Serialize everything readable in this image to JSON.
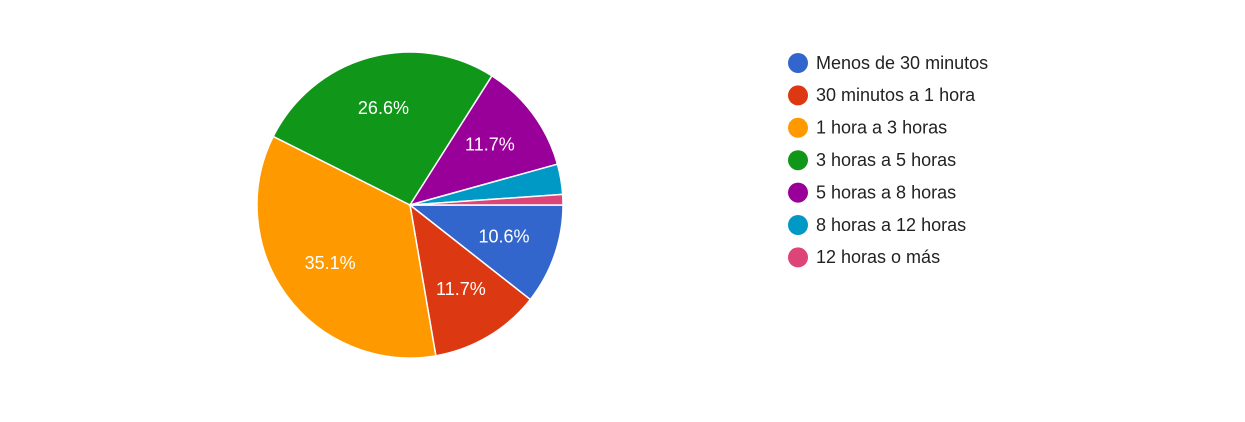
{
  "chart_data": {
    "type": "pie",
    "categories": [
      "Menos de 30 minutos",
      "30 minutos a 1 hora",
      "1 hora a 3 horas",
      "3 horas a 5 horas",
      "5 horas a 8 horas",
      "8 horas a 12 horas",
      "12 horas o más"
    ],
    "values": [
      10.6,
      11.7,
      35.1,
      26.6,
      11.7,
      3.2,
      1.1
    ],
    "value_labels": [
      "10.6%",
      "11.7%",
      "35.1%",
      "26.6%",
      "11.7%",
      null,
      null
    ],
    "colors": [
      "#3366cc",
      "#dc3912",
      "#ff9900",
      "#109618",
      "#990099",
      "#0099c6",
      "#dd4477"
    ]
  }
}
